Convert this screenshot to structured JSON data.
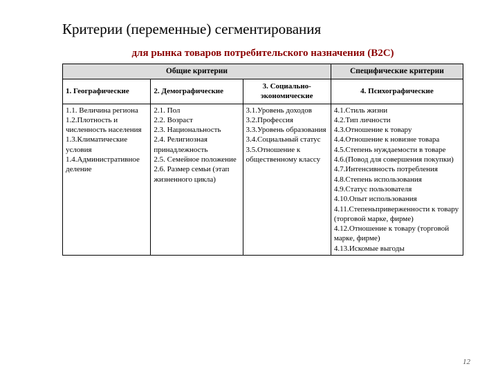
{
  "title": "Критерии (переменные) сегментирования",
  "subtitle": "для рынка товаров потребительского назначения (В2С)",
  "header_general": "Общие критерии",
  "header_specific": "Специфические критерии",
  "categories": {
    "c1": "1. Географические",
    "c2": "2. Демографические",
    "c3": "3. Социально-экономические",
    "c4": "4. Психографические"
  },
  "col1": [
    "1.1. Величина региона",
    "1.2.Плотность и численность населения",
    "1.3.Климатические условия",
    "1.4.Административное деление"
  ],
  "col2": [
    "2.1. Пол",
    "2.2. Возраст",
    "2.3. Национальность",
    "2.4. Религиозная принадлежность",
    "2.5. Семейное положение",
    "2.6. Размер семьи (этап жизненного цикла)"
  ],
  "col3": [
    "3.1.Уровень доходов",
    "3.2.Профессия",
    "3.3.Уровень образования",
    "3.4.Социальный статус",
    "3.5.Отношение к общественному классу"
  ],
  "col4": [
    "4.1.Стиль жизни",
    "4.2.Тип личности",
    "4.3.Отношение к товару",
    "4.4.Отношение к новизне товара",
    "4.5.Степень нуждаемости в товаре",
    "4.6.(Повод для совершения покупки)",
    "4.7.Интенсивность потребления",
    "4.8.Степень использования",
    "4.9.Статус пользователя",
    "4.10.Опыт использования",
    "4.11.Степеньприверженности к товару (торговой марке, фирме)",
    "4.12.Отношение к товару (торговой марке, фирме)",
    "4.13.Искомые выгоды"
  ],
  "page_number": "12",
  "colwidths": {
    "c1": "22%",
    "c2": "23%",
    "c3": "22%",
    "c4": "33%"
  }
}
